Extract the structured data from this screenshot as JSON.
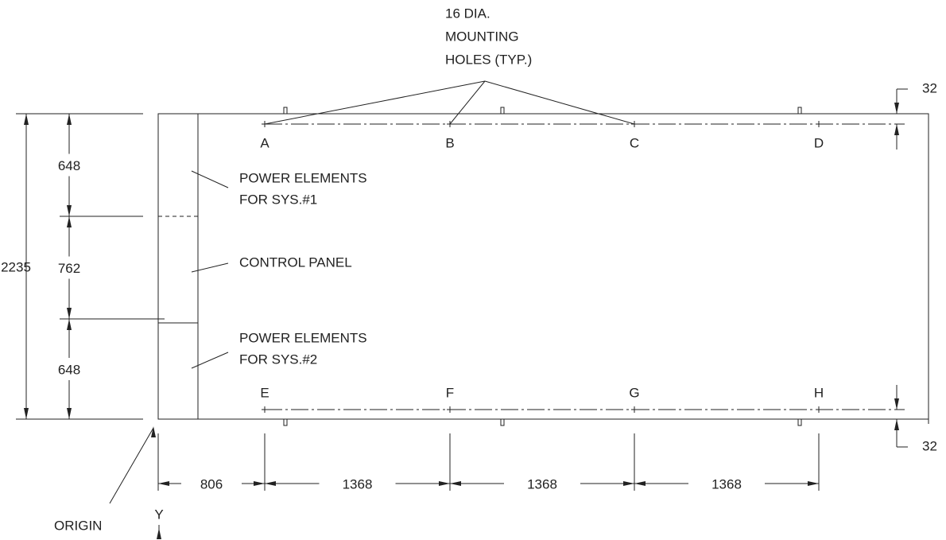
{
  "holes_note": [
    "16 DIA.",
    "MOUNTING",
    "HOLES (TYP.)"
  ],
  "holes": {
    "top": [
      "A",
      "B",
      "C",
      "D"
    ],
    "bottom": [
      "E",
      "F",
      "G",
      "H"
    ]
  },
  "zones": [
    [
      "POWER ELEMENTS",
      "FOR SYS.#1"
    ],
    [
      "CONTROL PANEL"
    ],
    [
      "POWER ELEMENTS",
      "FOR SYS.#2"
    ]
  ],
  "dimensions": {
    "total_height": 2235,
    "segments": [
      648,
      762,
      648
    ],
    "edge_offset": [
      32,
      32
    ],
    "horizontal": [
      806,
      1368,
      1368,
      1368
    ]
  },
  "origin": "ORIGIN",
  "axis": "Y"
}
